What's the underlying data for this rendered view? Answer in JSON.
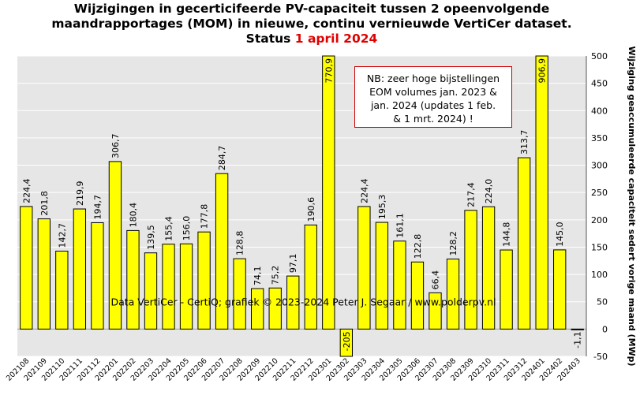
{
  "title": {
    "line1": "Wijzigingen  in gecerticifeerde PV-capaciteit tussen 2 opeenvolgende",
    "line2": "maandrapportages (MOM) in nieuwe, continu vernieuwde VertiCer dataset.",
    "line3_prefix": "Status ",
    "line3_highlight": "1 april 2024"
  },
  "note": {
    "lines": [
      "NB: zeer hoge bijstellingen",
      "EOM volumes jan. 2023 &",
      "jan. 2024 (updates 1 feb.",
      "& 1 mrt. 2024) !"
    ]
  },
  "credit": "Data VertiCer - CertiQ; grafiek © 2023-2024  Peter J. Segaar / www.polderpv.nl",
  "colors": {
    "bar": "#ffff00",
    "bar_stroke": "#000000",
    "plot_bg": "#e6e6e6",
    "grid": "#ffffff",
    "title_highlight": "#e00000",
    "note_border": "#cc0000"
  },
  "chart_data": {
    "type": "bar",
    "categories": [
      "202108",
      "202109",
      "202110",
      "202111",
      "202112",
      "202201",
      "202202",
      "202203",
      "202204",
      "202205",
      "202206",
      "202207",
      "202208",
      "202209",
      "202210",
      "202211",
      "202212",
      "202301",
      "202302",
      "202303",
      "202304",
      "202305",
      "202306",
      "202307",
      "202308",
      "202309",
      "202310",
      "202311",
      "202312",
      "202401",
      "202402",
      "202403"
    ],
    "values": [
      224.4,
      201.8,
      142.7,
      219.9,
      194.7,
      306.7,
      180.4,
      139.5,
      155.4,
      156.0,
      177.8,
      284.7,
      128.8,
      74.1,
      75.2,
      97.1,
      190.6,
      770.9,
      -205,
      224.4,
      195.3,
      161.1,
      122.8,
      66.4,
      128.2,
      217.4,
      224.0,
      144.8,
      313.7,
      906.9,
      145.0,
      -1.1
    ],
    "value_labels": [
      "224,4",
      "201,8",
      "142,7",
      "219,9",
      "194,7",
      "306,7",
      "180,4",
      "139,5",
      "155,4",
      "156,0",
      "177,8",
      "284,7",
      "128,8",
      "74,1",
      "75,2",
      "97,1",
      "190,6",
      "770,9",
      "-205",
      "224,4",
      "195,3",
      "161,1",
      "122,8",
      "66,4",
      "128,2",
      "217,4",
      "224,0",
      "144,8",
      "313,7",
      "906,9",
      "145,0",
      "-1,1"
    ],
    "ylim": [
      -50,
      500
    ],
    "yticks": [
      -50,
      0,
      50,
      100,
      150,
      200,
      250,
      300,
      350,
      400,
      450,
      500
    ],
    "ylabel": "Wijziging geaccumuleerde capaciteit sedert vorige maand (MWp)",
    "y_axis_side": "right",
    "grid": true,
    "legend": "none"
  }
}
